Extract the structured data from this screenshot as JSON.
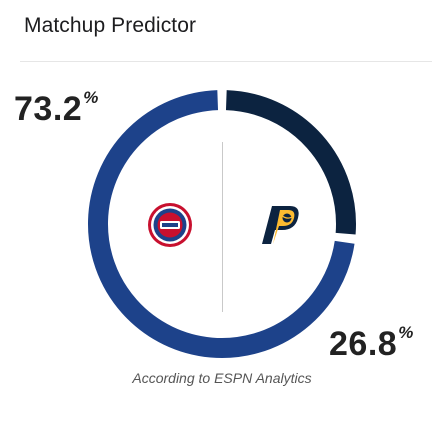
{
  "header": {
    "title": "Matchup Predictor"
  },
  "matchup": {
    "left_team": {
      "logo_icon": "pistons-logo-icon",
      "win_pct_value": "73.2",
      "win_pct_unit": "%",
      "color": "#1d428a"
    },
    "right_team": {
      "logo_icon": "pacers-logo-icon",
      "win_pct_value": "26.8",
      "win_pct_unit": "%",
      "color": "#0c2340"
    }
  },
  "footer": {
    "source_text": "According to ESPN Analytics"
  }
}
